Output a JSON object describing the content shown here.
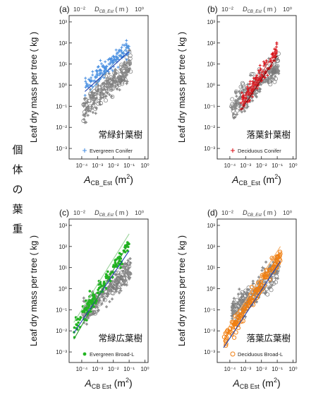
{
  "side_label": [
    "個",
    "体",
    "の",
    "葉",
    "重"
  ],
  "chart_data": [
    {
      "type": "scatter",
      "panel_label": "(a)",
      "jp_label": "常緑針葉樹",
      "legend": "Evergreen Conifer",
      "series_color": "#4a90e2",
      "marker": "+",
      "ylabel": "Leaf dry mass per tree ( kg )",
      "xlabel_base": "A",
      "xlabel_sub": "CB_Est",
      "xlabel_unit": " (m",
      "xlabel_sup": "2",
      "xlabel_close": ")",
      "top_label_base": "D",
      "top_label_sub": "CB_Est",
      "top_label_unit": " ( m )",
      "top_ticks": [
        "10⁻²",
        "10⁰"
      ],
      "x_ticks": [
        "10⁻⁴",
        "10⁻³",
        "10⁻²",
        "10⁻¹",
        "10⁰"
      ],
      "y_ticks": [
        "10⁻³",
        "10⁻²",
        "10⁻¹",
        "10⁰",
        "10¹",
        "10²",
        "10³"
      ],
      "xlim_log10": [
        -4.8,
        0.2
      ],
      "ylim_log10": [
        -3.5,
        3.3
      ],
      "fit_lines": [
        {
          "color": "#1f3fae",
          "x": [
            -3.8,
            -1.0
          ],
          "y": [
            -0.3,
            1.6
          ]
        },
        {
          "color": "#5b9bd5",
          "x": [
            -3.5,
            -1.0
          ],
          "y": [
            -0.3,
            1.9
          ]
        }
      ]
    },
    {
      "type": "scatter",
      "panel_label": "(b)",
      "jp_label": "落葉針葉樹",
      "legend": "Deciduous Conifer",
      "series_color": "#d9141b",
      "marker": "+",
      "ylabel": "Leaf dry mass per tree ( kg )",
      "xlabel_base": "A",
      "xlabel_sub": "CB_Est",
      "xlabel_unit": " (m",
      "xlabel_sup": "2",
      "xlabel_close": ")",
      "top_label_base": "D",
      "top_label_sub": "CB_Est",
      "top_label_unit": " ( m )",
      "top_ticks": [
        "10⁻²",
        "10⁰"
      ],
      "x_ticks": [
        "10⁻⁴",
        "10⁻³",
        "10⁻²",
        "10⁻¹",
        "10⁰"
      ],
      "y_ticks": [
        "10⁻³",
        "10⁻²",
        "10⁻¹",
        "10⁰",
        "10¹",
        "10²",
        "10³"
      ],
      "xlim_log10": [
        -4.8,
        0.2
      ],
      "ylim_log10": [
        -3.5,
        3.3
      ],
      "fit_lines": [
        {
          "color": "#7a0d0d",
          "x": [
            -3.3,
            -1.0
          ],
          "y": [
            -1.2,
            1.4
          ]
        },
        {
          "color": "#e0474c",
          "x": [
            -3.3,
            -1.0
          ],
          "y": [
            -0.9,
            1.7
          ]
        }
      ]
    },
    {
      "type": "scatter",
      "panel_label": "(c)",
      "jp_label": "常緑広葉樹",
      "legend": "Evergreen Broad-L",
      "series_color": "#22b522",
      "marker": "dot",
      "ylabel": "Leaf dry mass per tree ( kg )",
      "xlabel_base": "A",
      "xlabel_sub": "CB  Est",
      "xlabel_unit": " (m",
      "xlabel_sup": "2",
      "xlabel_close": ")",
      "top_label_base": "D",
      "top_label_sub": "CB_Est",
      "top_label_unit": " ( m )",
      "top_ticks": [
        "10⁻²",
        "10⁰"
      ],
      "x_ticks": [
        "10⁻⁴",
        "10⁻³",
        "10⁻²",
        "10⁻¹",
        "10⁰"
      ],
      "y_ticks": [
        "10⁻³",
        "10⁻²",
        "10⁻¹",
        "10⁰",
        "10¹",
        "10²",
        "10³"
      ],
      "xlim_log10": [
        -4.8,
        0.2
      ],
      "ylim_log10": [
        -3.5,
        3.3
      ],
      "fit_lines": [
        {
          "color": "#1f3fae",
          "x": [
            -4.5,
            -1.0
          ],
          "y": [
            -2.1,
            1.8
          ]
        },
        {
          "color": "#2a9d2a",
          "x": [
            -4.5,
            -1.0
          ],
          "y": [
            -2.4,
            2.2
          ]
        },
        {
          "color": "#9bd39b",
          "x": [
            -4.5,
            -1.0
          ],
          "y": [
            -1.6,
            2.6
          ]
        }
      ]
    },
    {
      "type": "scatter",
      "panel_label": "(d)",
      "jp_label": "落葉広葉樹",
      "legend": "Deciduous Broad-L",
      "series_color": "#f07f12",
      "marker": "circle",
      "ylabel": "Leaf dry mass per tree ( kg )",
      "xlabel_base": "A",
      "xlabel_sub": "CB  Est",
      "xlabel_unit": " (m",
      "xlabel_sup": "2",
      "xlabel_close": ")",
      "top_label_base": "D",
      "top_label_sub": "CB_Est",
      "top_label_unit": " ( m )",
      "top_ticks": [
        "10⁻²",
        "10⁰"
      ],
      "x_ticks": [
        "10⁻⁴",
        "10⁻³",
        "10⁻²",
        "10⁻¹",
        "10⁰"
      ],
      "y_ticks": [
        "10⁻³",
        "10⁻²",
        "10⁻¹",
        "10⁰",
        "10¹",
        "10²",
        "10³"
      ],
      "xlim_log10": [
        -4.8,
        0.2
      ],
      "ylim_log10": [
        -3.5,
        3.3
      ],
      "fit_lines": [
        {
          "color": "#1f3fae",
          "x": [
            -4.4,
            -0.8
          ],
          "y": [
            -2.8,
            1.3
          ]
        },
        {
          "color": "#f07f12",
          "x": [
            -4.4,
            -0.8
          ],
          "y": [
            -2.5,
            1.7
          ]
        },
        {
          "color": "#f5b06a",
          "x": [
            -4.4,
            -0.8
          ],
          "y": [
            -2.2,
            2.0
          ]
        }
      ]
    }
  ]
}
